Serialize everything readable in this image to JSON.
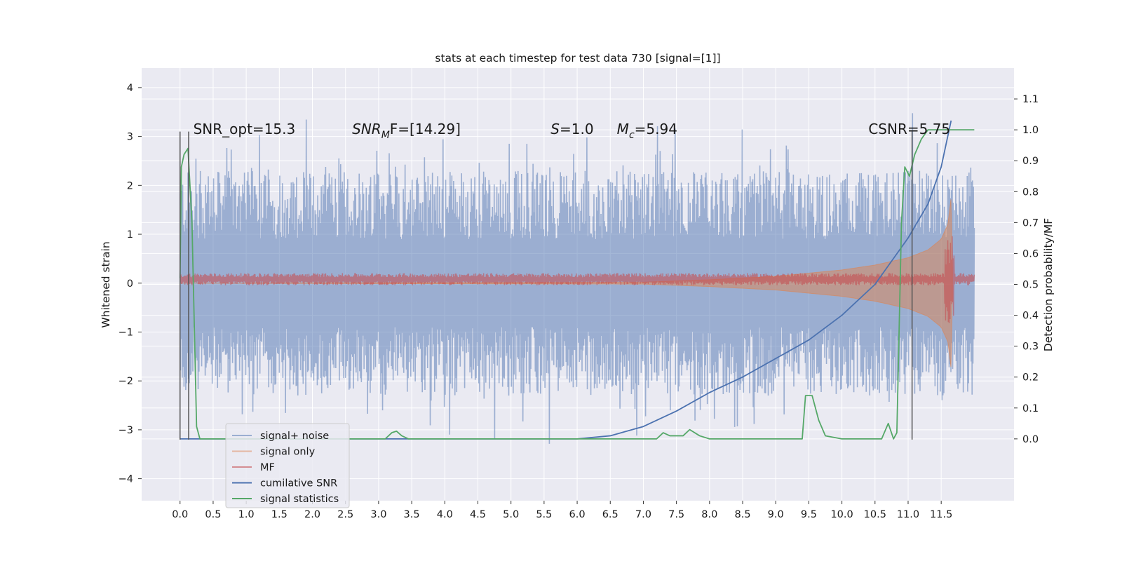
{
  "chart_data": {
    "type": "line",
    "title": "stats at each timestep for test data 730 [signal=[1]]",
    "xlabel": "",
    "ylabel": "Whitened strain",
    "ylabel_right": "Detection probability/MF",
    "xlim": [
      -0.58,
      12.6
    ],
    "ylim": [
      -4.45,
      4.4
    ],
    "ylim_right": [
      -0.2,
      1.2
    ],
    "x_ticks": [
      "0.0",
      "0.5",
      "1.0",
      "1.5",
      "2.0",
      "2.5",
      "3.0",
      "3.5",
      "4.0",
      "4.5",
      "5.0",
      "5.5",
      "6.0",
      "6.5",
      "7.0",
      "7.5",
      "8.0",
      "8.5",
      "9.0",
      "9.5",
      "10.0",
      "10.5",
      "11.0",
      "11.5"
    ],
    "y_ticks": [
      "4",
      "3",
      "2",
      "1",
      "0",
      "−1",
      "−2",
      "−3",
      "−4"
    ],
    "y_ticks_right": [
      "1.1",
      "1.0",
      "0.9",
      "0.8",
      "0.7",
      "0.6",
      "0.5",
      "0.4",
      "0.3",
      "0.2",
      "0.1",
      "0.0"
    ],
    "grid": true,
    "legend_position": "bottom-left",
    "annotations": [
      {
        "text": "SNR_opt=15.3",
        "x": 0.2,
        "y": 3.15
      },
      {
        "text": "F=[14.29]",
        "math_prefix": {
          "base": "SNR",
          "sub": "M"
        },
        "x": 2.6,
        "y": 3.15
      },
      {
        "text": "=1.0",
        "math_prefix": {
          "base": "S",
          "sub": ""
        },
        "x": 5.6,
        "y": 3.15
      },
      {
        "text": "=5.94",
        "math_prefix": {
          "base": "M",
          "sub": "c"
        },
        "x": 6.6,
        "y": 3.15
      },
      {
        "text": "CSNR=5.75",
        "x": 10.4,
        "y": 3.15
      }
    ],
    "vertical_markers_x": [
      0.0,
      0.13,
      11.06
    ],
    "vertical_markers_y": [
      -3.2,
      3.1
    ],
    "series": [
      {
        "name": "signal+ noise",
        "color": "#4c72b0",
        "opacity": 0.5,
        "axis": "left",
        "kind": "noisy band",
        "x_range": [
          0.0,
          12.0
        ],
        "envelope": 2.1
      },
      {
        "name": "signal only",
        "color": "#dd8452",
        "opacity": 0.5,
        "axis": "left",
        "kind": "chirp band",
        "x": [
          0.0,
          7.0,
          8.0,
          9.0,
          10.0,
          10.5,
          11.0,
          11.3,
          11.5,
          11.6,
          11.65,
          11.67
        ],
        "values": [
          0.0,
          0.02,
          0.07,
          0.14,
          0.27,
          0.37,
          0.52,
          0.68,
          0.9,
          1.2,
          1.75,
          0.3
        ]
      },
      {
        "name": "MF",
        "color": "#c44e52",
        "opacity": 0.6,
        "axis": "left",
        "kind": "noisy band",
        "x_range": [
          0.0,
          12.0
        ],
        "envelope": 0.12
      },
      {
        "name": "cumilative SNR",
        "color": "#4c72b0",
        "axis": "right",
        "x": [
          0.0,
          6.0,
          6.5,
          7.0,
          7.5,
          8.0,
          8.5,
          9.0,
          9.5,
          10.0,
          10.5,
          11.0,
          11.3,
          11.5,
          11.65
        ],
        "values": [
          0.0,
          0.0,
          0.01,
          0.04,
          0.09,
          0.15,
          0.2,
          0.26,
          0.32,
          0.4,
          0.5,
          0.65,
          0.76,
          0.88,
          1.03
        ]
      },
      {
        "name": "signal statistics",
        "color": "#55a868",
        "axis": "right",
        "x": [
          0.0,
          0.02,
          0.06,
          0.12,
          0.18,
          0.25,
          0.3,
          1.5,
          3.1,
          3.2,
          3.27,
          3.35,
          3.45,
          4.5,
          7.2,
          7.3,
          7.4,
          7.6,
          7.7,
          7.85,
          8.0,
          8.5,
          9.0,
          9.4,
          9.45,
          9.55,
          9.65,
          9.75,
          10.0,
          10.6,
          10.7,
          10.78,
          10.83,
          10.9,
          10.95,
          11.02,
          11.1,
          11.2,
          11.3,
          11.5,
          12.0
        ],
        "values": [
          0.52,
          0.88,
          0.92,
          0.94,
          0.7,
          0.04,
          0.0,
          0.0,
          0.0,
          0.02,
          0.025,
          0.01,
          0.0,
          0.0,
          0.0,
          0.02,
          0.01,
          0.01,
          0.03,
          0.01,
          0.0,
          0.0,
          0.0,
          0.0,
          0.14,
          0.14,
          0.06,
          0.01,
          0.0,
          0.0,
          0.05,
          0.0,
          0.02,
          0.7,
          0.88,
          0.85,
          0.92,
          0.97,
          1.0,
          1.0,
          1.0
        ]
      }
    ]
  },
  "colors": {
    "plot_background": "#eaeaf2",
    "grid": "#ffffff",
    "signal_noise": "#4c72b0",
    "signal_only": "#dd8452",
    "mf": "#c44e52",
    "cumulative_snr": "#4c72b0",
    "signal_statistics": "#55a868",
    "markers": "#555555"
  }
}
